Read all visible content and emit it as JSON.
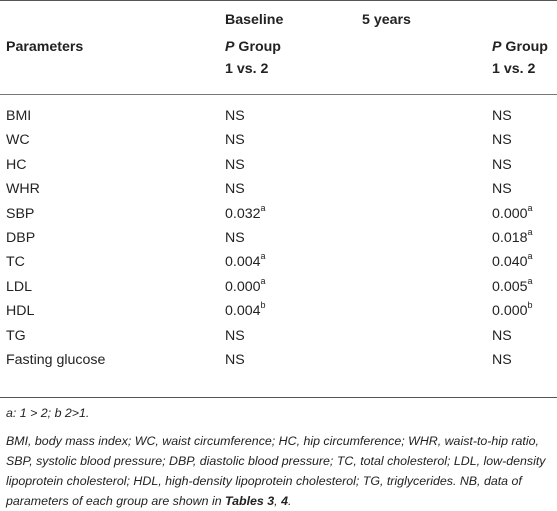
{
  "header": {
    "baseline_label": "Baseline",
    "five_years_label": "5 years",
    "parameters_label": "Parameters",
    "p_italic": "P",
    "group_line1": " Group",
    "group_line2": "1 vs. 2"
  },
  "rows": [
    {
      "param": "BMI",
      "baseline": "NS",
      "baseline_sup": "",
      "five": "NS",
      "five_sup": ""
    },
    {
      "param": "WC",
      "baseline": "NS",
      "baseline_sup": "",
      "five": "NS",
      "five_sup": ""
    },
    {
      "param": "HC",
      "baseline": "NS",
      "baseline_sup": "",
      "five": "NS",
      "five_sup": ""
    },
    {
      "param": "WHR",
      "baseline": "NS",
      "baseline_sup": "",
      "five": "NS",
      "five_sup": ""
    },
    {
      "param": "SBP",
      "baseline": "0.032",
      "baseline_sup": "a",
      "five": "0.000",
      "five_sup": "a"
    },
    {
      "param": "DBP",
      "baseline": "NS",
      "baseline_sup": "",
      "five": "0.018",
      "five_sup": "a"
    },
    {
      "param": "TC",
      "baseline": "0.004",
      "baseline_sup": "a",
      "five": "0.040",
      "five_sup": "a"
    },
    {
      "param": "LDL",
      "baseline": "0.000",
      "baseline_sup": "a",
      "five": "0.005",
      "five_sup": "a"
    },
    {
      "param": "HDL",
      "baseline": "0.004",
      "baseline_sup": "b",
      "five": "0.000",
      "five_sup": "b"
    },
    {
      "param": "TG",
      "baseline": "NS",
      "baseline_sup": "",
      "five": "NS",
      "five_sup": ""
    },
    {
      "param": "Fasting glucose",
      "baseline": "NS",
      "baseline_sup": "",
      "five": "NS",
      "five_sup": ""
    }
  ],
  "footnotes": {
    "line1": "a: 1 > 2; b 2>1.",
    "abbrev_text": "BMI, body mass index; WC, waist circumference; HC, hip circumference; WHR, waist-to-hip ratio, SBP, systolic blood pressure; DBP, diastolic blood pressure; TC, total cholesterol; LDL, low-density lipoprotein cholesterol; HDL, high-density lipoprotein cholesterol; TG, triglycerides. NB, data of parameters of each group are shown in ",
    "tables_ref": "Tables 3",
    "sep": ", ",
    "table_4": "4",
    "end": "."
  }
}
